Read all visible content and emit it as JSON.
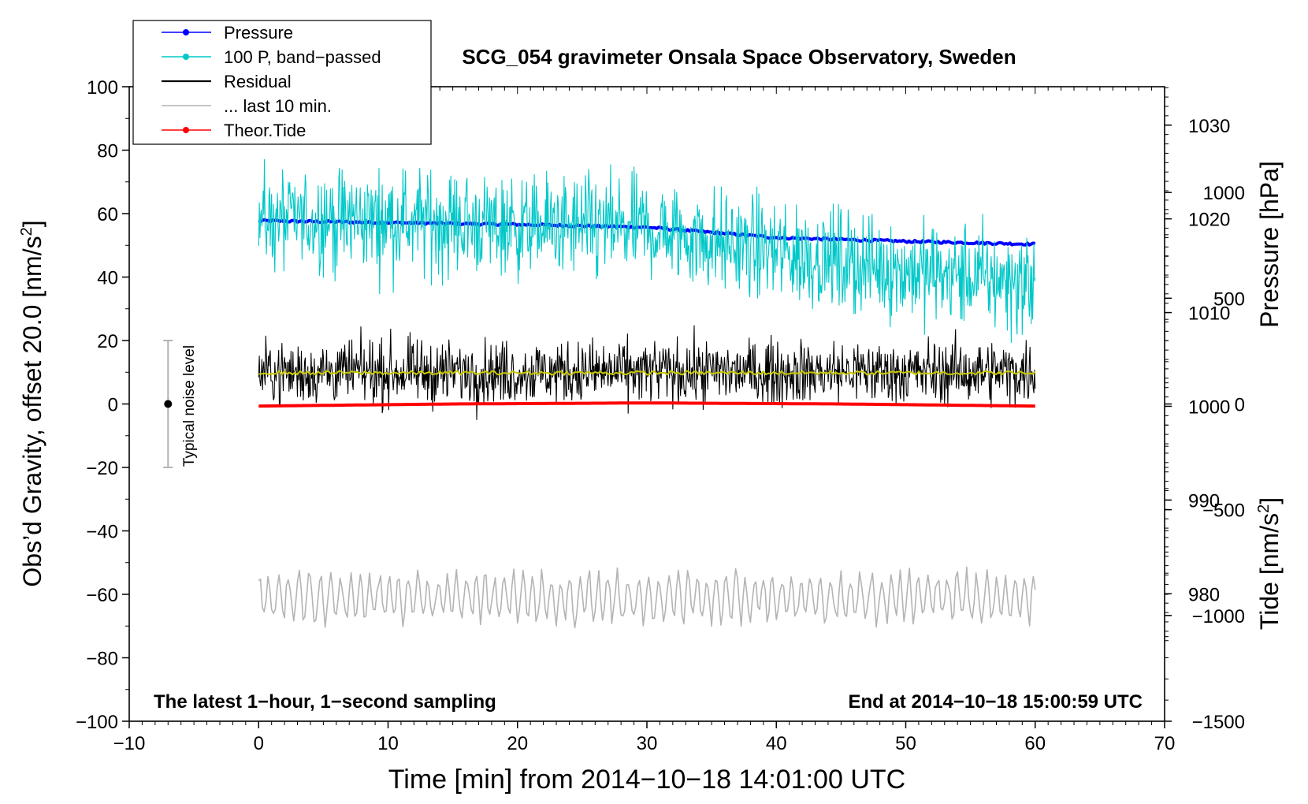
{
  "chart_data": {
    "type": "line",
    "title": "SCG_054 gravimeter Onsala Space Observatory, Sweden",
    "xlabel": "Time [min] from 2014−10−18 14:01:00 UTC",
    "ylabel_left_main": "Obs’d Gravity, offset 20.0 [nm/s",
    "ylabel_left_sup": "2",
    "ylabel_left_end": "]",
    "ylabel_pressure": "Pressure [hPa]",
    "ylabel_tide_main": "Tide [nm/s",
    "ylabel_tide_sup": "2",
    "ylabel_tide_end": "]",
    "xlim": [
      -10,
      70
    ],
    "ylim": [
      -100,
      100
    ],
    "pressure_lim": [
      966.4,
      1034.1
    ],
    "tide_lim": [
      -1500,
      1500
    ],
    "x_ticks": [
      "−10",
      "0",
      "10",
      "20",
      "30",
      "40",
      "50",
      "60",
      "70"
    ],
    "y_ticks": [
      "100",
      "80",
      "60",
      "40",
      "20",
      "0",
      "−20",
      "−40",
      "−60",
      "−80",
      "−100"
    ],
    "pressure_ticks": [
      "1030",
      "1020",
      "1010",
      "1000",
      "990",
      "980"
    ],
    "tide_ticks": [
      "1000",
      "500",
      "0",
      "−500",
      "−1000",
      "−1500"
    ],
    "annotation_left": "The latest 1−hour, 1−second sampling",
    "annotation_right": "End at 2014−10−18 15:00:59 UTC",
    "noise_label": "Typical noise level",
    "noise_bar": {
      "x": -7,
      "center": 0,
      "low": -20,
      "high": 20
    },
    "legend": [
      {
        "label": "Pressure",
        "color": "#0000ff",
        "marker": true
      },
      {
        "label": "100 P, band−passed",
        "color": "#00c8c8",
        "marker": true
      },
      {
        "label": "Residual",
        "color": "#000000",
        "marker": false
      },
      {
        "label": "... last 10 min.",
        "color": "#b4b4b4",
        "marker": false
      },
      {
        "label": "Theor.Tide",
        "color": "#ff0000",
        "marker": true
      }
    ],
    "series": [
      {
        "name": "Pressure",
        "axis": "pressure",
        "color": "#0000ff",
        "x": [
          0,
          10,
          20,
          30,
          40,
          50,
          60
        ],
        "y": [
          1019.8,
          1019.6,
          1019.4,
          1019.1,
          1018.0,
          1017.6,
          1017.3
        ]
      },
      {
        "name": "100 P, band−passed",
        "axis": "left",
        "color": "#00c8c8",
        "x": [
          0,
          10,
          20,
          30,
          40,
          50,
          60
        ],
        "y": [
          58,
          58,
          56,
          55,
          48,
          42,
          38
        ],
        "noise": 8
      },
      {
        "name": "Residual",
        "axis": "left",
        "color": "#000000",
        "x": [
          0,
          60
        ],
        "y": [
          10,
          10
        ],
        "noise": 5
      },
      {
        "name": "... last 10 min.",
        "axis": "left",
        "color": "#b4b4b4",
        "x": [
          0,
          60
        ],
        "y": [
          -61,
          -61
        ],
        "noise": 5
      },
      {
        "name": "Theor.Tide",
        "axis": "tide",
        "color": "#ff0000",
        "x": [
          0,
          15,
          30,
          45,
          60
        ],
        "y": [
          -10,
          0,
          5,
          0,
          -10
        ]
      }
    ],
    "smoothed_residual": {
      "color": "#c8c800",
      "x": [
        0,
        60
      ],
      "y": [
        9.8,
        9.8
      ]
    }
  }
}
